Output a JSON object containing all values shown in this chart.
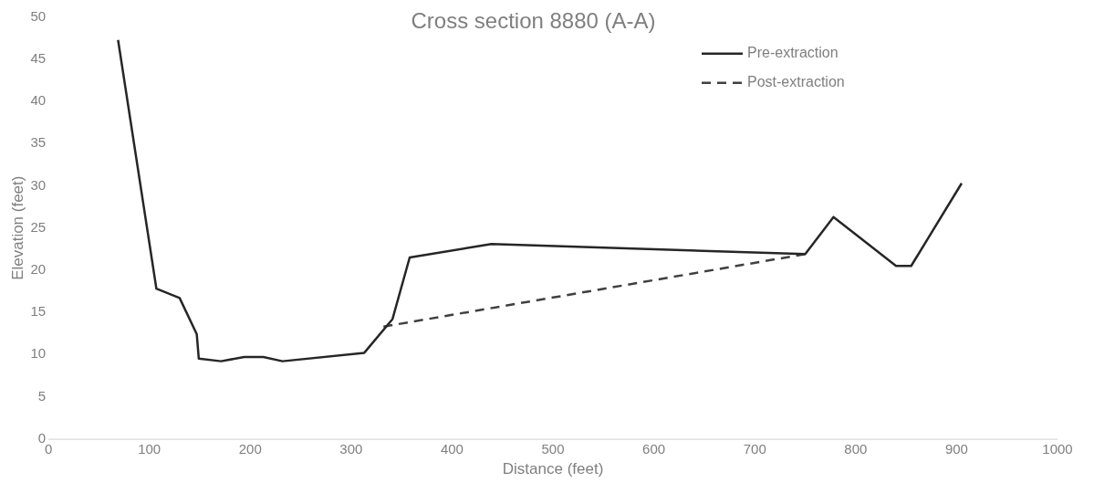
{
  "chart_data": {
    "type": "line",
    "title": "Cross section 8880 (A-A)",
    "xlabel": "Distance (feet)",
    "ylabel": "Elevation (feet)",
    "xlim": [
      0,
      1000
    ],
    "xticks": [
      0,
      100,
      200,
      300,
      400,
      500,
      600,
      700,
      800,
      900,
      1000
    ],
    "ylim": [
      0,
      50
    ],
    "yticks": [
      0,
      5,
      10,
      15,
      20,
      25,
      30,
      35,
      40,
      45,
      50
    ],
    "grid": false,
    "legend": "top right",
    "marker": "none",
    "series": [
      {
        "name": "Pre-extraction",
        "color": "#262626",
        "line_style": "solid",
        "x": [
          69,
          107,
          130,
          147,
          149,
          171,
          194,
          213,
          232,
          313,
          341,
          358,
          439,
          750,
          778,
          840,
          855,
          905
        ],
        "values": [
          47.3,
          17.8,
          16.7,
          12.4,
          9.5,
          9.2,
          9.7,
          9.7,
          9.2,
          10.2,
          14.2,
          21.5,
          23.1,
          21.9,
          26.3,
          20.5,
          20.5,
          30.3
        ]
      },
      {
        "name": "Post-extraction",
        "color": "#404040",
        "line_style": "dashed",
        "x": [
          332,
          750
        ],
        "values": [
          13.3,
          21.9
        ]
      }
    ]
  }
}
